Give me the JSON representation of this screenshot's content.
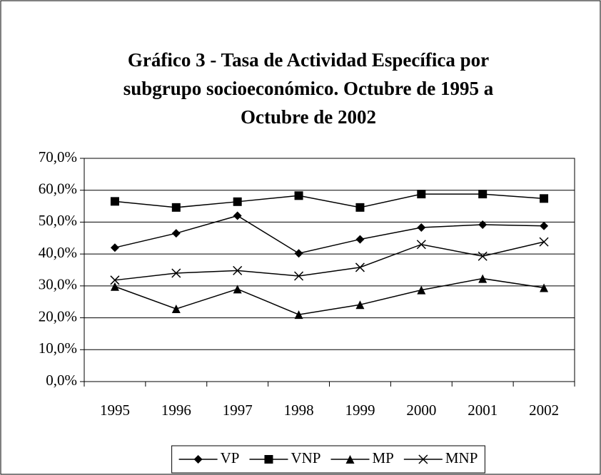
{
  "chart_data": {
    "type": "line",
    "title": [
      "Gráfico 3 - Tasa de Actividad Específica  por",
      "subgrupo socioeconómico. Octubre de 1995 a",
      "Octubre de 2002"
    ],
    "categories": [
      "1995",
      "1996",
      "1997",
      "1998",
      "1999",
      "2000",
      "2001",
      "2002"
    ],
    "series": [
      {
        "name": "VP",
        "color": "#000000",
        "marker": "diamond",
        "values": [
          42.0,
          46.5,
          52.0,
          40.2,
          44.6,
          48.3,
          49.2,
          48.8
        ]
      },
      {
        "name": "VNP",
        "color": "#000000",
        "marker": "square",
        "values": [
          56.5,
          54.6,
          56.4,
          58.3,
          54.6,
          58.8,
          58.8,
          57.4
        ]
      },
      {
        "name": "MP",
        "color": "#000000",
        "marker": "triangle",
        "values": [
          29.8,
          22.8,
          29.0,
          21.0,
          24.1,
          28.7,
          32.3,
          29.4
        ]
      },
      {
        "name": "MNP",
        "color": "#000000",
        "marker": "x",
        "values": [
          31.8,
          34.0,
          34.8,
          33.1,
          35.8,
          43.0,
          39.3,
          43.8
        ]
      }
    ],
    "ylim": [
      0,
      70
    ],
    "yticks": [
      {
        "value": 0,
        "label": "0,0%"
      },
      {
        "value": 10,
        "label": "10,0%"
      },
      {
        "value": 20,
        "label": "20,0%"
      },
      {
        "value": 30,
        "label": "30,0%"
      },
      {
        "value": 40,
        "label": "40,0%"
      },
      {
        "value": 50,
        "label": "50,0%"
      },
      {
        "value": 60,
        "label": "60,0%"
      },
      {
        "value": 70,
        "label": "70,0%"
      }
    ],
    "grid": true,
    "legend": "bottom"
  }
}
